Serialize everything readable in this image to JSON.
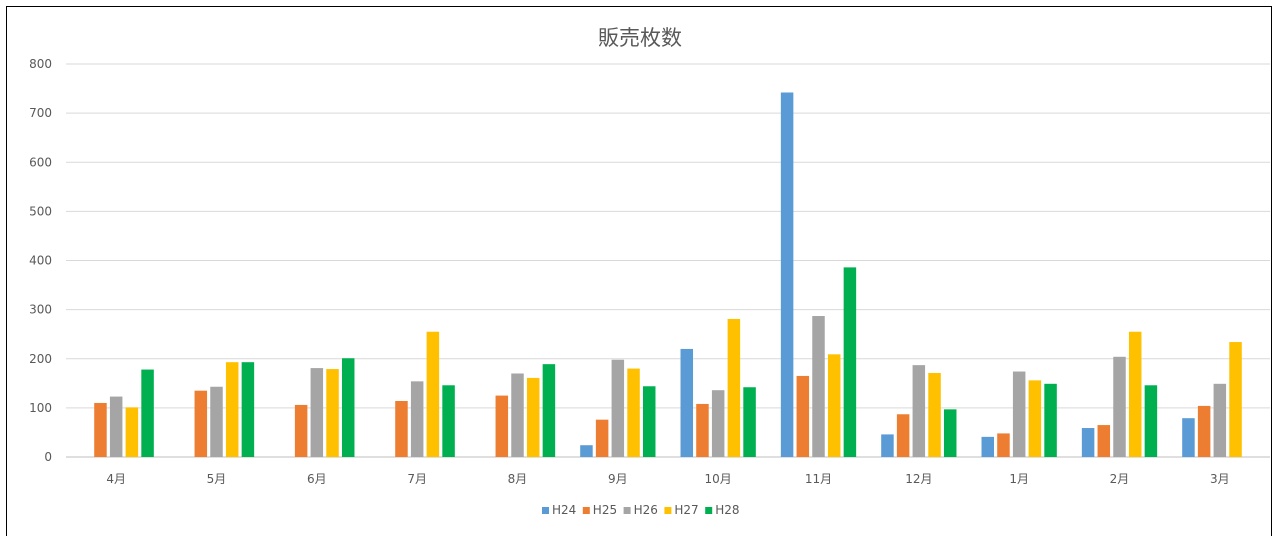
{
  "chart_data": {
    "type": "bar",
    "title": "販売枚数",
    "xlabel": "",
    "ylabel": "",
    "ylim": [
      0,
      800
    ],
    "yticks": [
      0,
      100,
      200,
      300,
      400,
      500,
      600,
      700,
      800
    ],
    "grid": true,
    "legend_position": "bottom",
    "categories": [
      "4月",
      "5月",
      "6月",
      "7月",
      "8月",
      "9月",
      "10月",
      "11月",
      "12月",
      "1月",
      "2月",
      "3月"
    ],
    "series": [
      {
        "name": "H24",
        "color": "#5B9BD5",
        "values": [
          null,
          null,
          null,
          null,
          null,
          24,
          220,
          742,
          46,
          41,
          59,
          79
        ]
      },
      {
        "name": "H25",
        "color": "#ED7D31",
        "values": [
          110,
          135,
          106,
          114,
          125,
          76,
          108,
          165,
          87,
          48,
          65,
          104
        ]
      },
      {
        "name": "H26",
        "color": "#A5A5A5",
        "values": [
          123,
          143,
          181,
          154,
          170,
          198,
          136,
          287,
          187,
          174,
          204,
          149
        ]
      },
      {
        "name": "H27",
        "color": "#FFC000",
        "values": [
          101,
          193,
          179,
          255,
          161,
          180,
          281,
          209,
          171,
          156,
          255,
          234
        ]
      },
      {
        "name": "H28",
        "color": "#00B050",
        "values": [
          178,
          193,
          201,
          146,
          189,
          144,
          142,
          386,
          97,
          149,
          146,
          null
        ]
      }
    ]
  }
}
